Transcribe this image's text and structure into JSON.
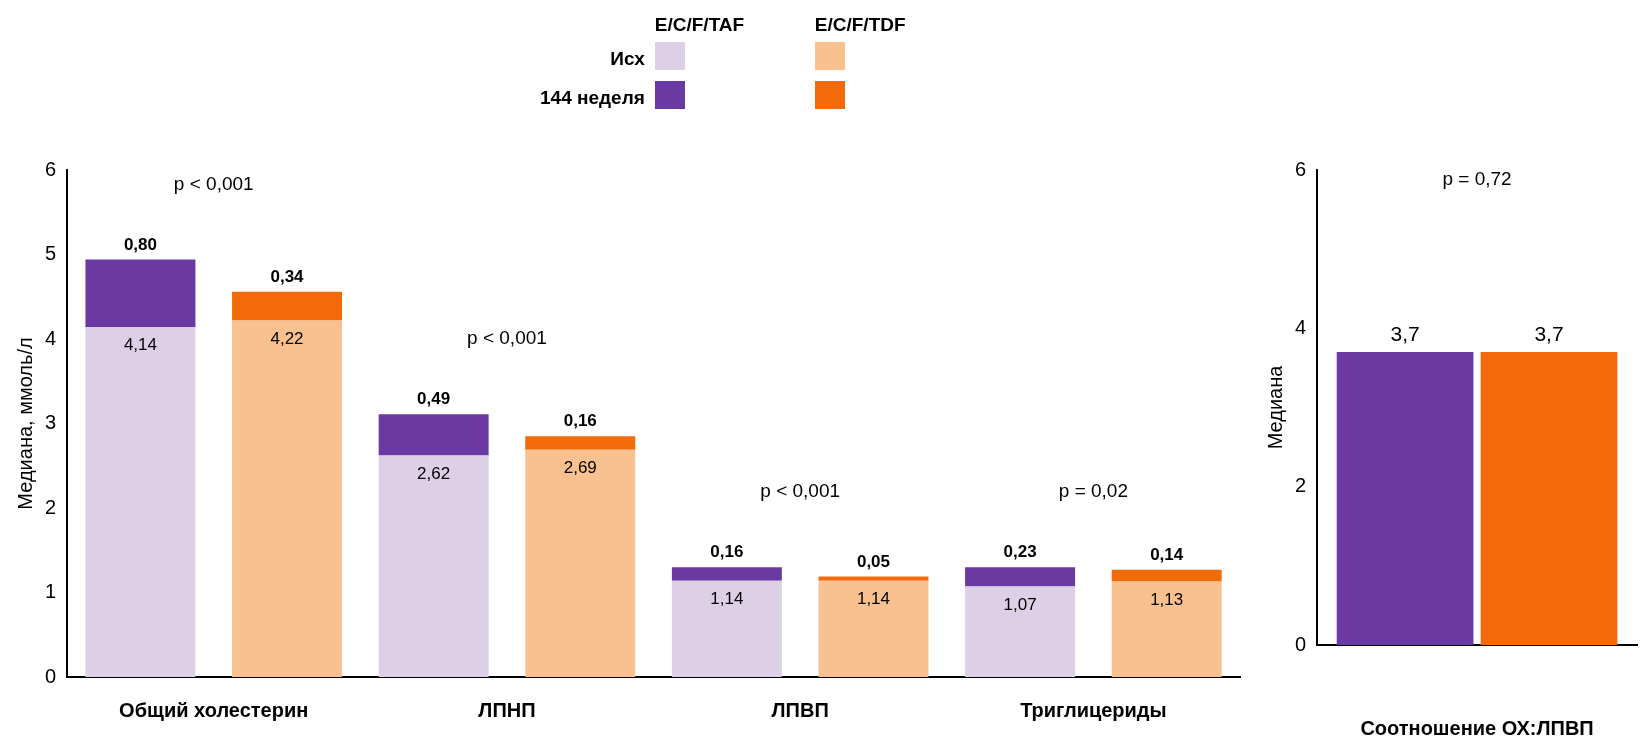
{
  "chart_data": [
    {
      "type": "bar",
      "stacked": true,
      "ylabel": "Медиана, ммоль/л",
      "ylim": [
        0,
        6
      ],
      "yticks": [
        0,
        1,
        2,
        3,
        4,
        5,
        6
      ],
      "grid": false,
      "legend": "top",
      "categories": [
        "Общий холестерин",
        null,
        "ЛПНП",
        null,
        "ЛПВП",
        null,
        "Триглицериды",
        null
      ],
      "series": [
        {
          "name": "Исх",
          "colors": [
            "#dccfe6",
            "#f9c090",
            "#dccfe6",
            "#f9c090",
            "#dccfe6",
            "#f9c090",
            "#dccfe6",
            "#f9c090"
          ],
          "values": [
            4.14,
            4.22,
            2.62,
            2.69,
            1.14,
            1.14,
            1.07,
            1.13
          ],
          "value_labels": [
            "4,14",
            "4,22",
            "2,62",
            "2,69",
            "1,14",
            "1,14",
            "1,07",
            "1,13"
          ]
        },
        {
          "name": "144 неделя",
          "colors": [
            "#6a3aa2",
            "#f26a0a",
            "#6a3aa2",
            "#f26a0a",
            "#6a3aa2",
            "#f26a0a",
            "#6a3aa2",
            "#f26a0a"
          ],
          "values": [
            0.8,
            0.34,
            0.49,
            0.16,
            0.16,
            0.05,
            0.23,
            0.14
          ],
          "value_labels": [
            "0,80",
            "0,34",
            "0,49",
            "0,16",
            "0,16",
            "0,05",
            "0,23",
            "0,14"
          ]
        }
      ],
      "annotations": [
        "E/C/F/TAF",
        "E/C/F/TDF",
        "p < 0,001",
        "p < 0,001",
        "p < 0,001",
        "p = 0,02"
      ]
    },
    {
      "type": "bar",
      "ylabel": "Медиана",
      "xlabel": "Соотношение ОХ:ЛПВП",
      "ylim": [
        0,
        6
      ],
      "yticks": [
        0,
        2,
        4,
        6
      ],
      "grid": false,
      "categories": [
        null
      ],
      "series": [
        {
          "color": "#6a3aa2",
          "values": [
            3.7
          ],
          "value_labels": [
            "3,7"
          ]
        },
        {
          "color": "#f26a0a",
          "values": [
            3.7
          ],
          "value_labels": [
            "3,7"
          ]
        }
      ],
      "annotations": [
        "p = 0,72"
      ]
    }
  ]
}
